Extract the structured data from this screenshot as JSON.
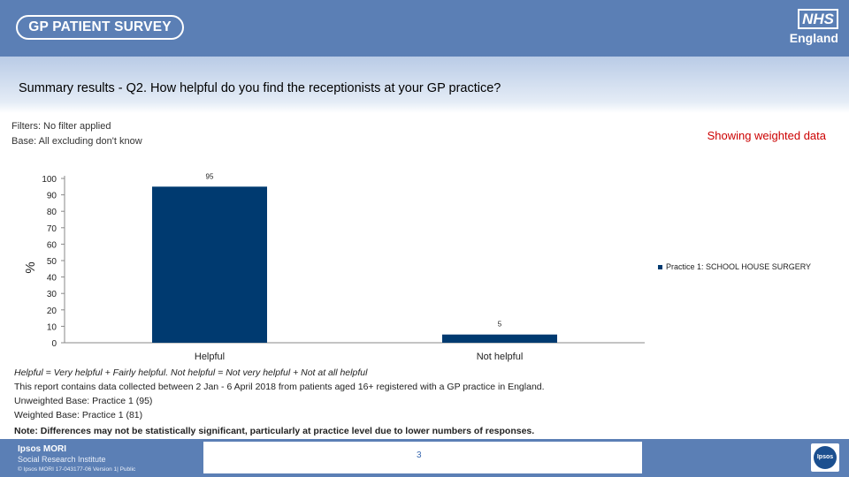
{
  "header": {
    "survey_logo": "GP PATIENT SURVEY",
    "nhs_logo": "NHS",
    "nhs_england": "England"
  },
  "title": "Summary results - Q2.  How helpful do you find the receptionists at your GP practice?",
  "filters": "Filters: No filter applied",
  "base": "Base: All excluding don't know",
  "weighted_label": "Showing weighted data",
  "chart_data": {
    "type": "bar",
    "categories": [
      "Helpful",
      "Not helpful"
    ],
    "series": [
      {
        "name": "Practice 1: SCHOOL HOUSE SURGERY",
        "values": [
          95,
          5
        ]
      }
    ],
    "data_labels": [
      "95",
      "5"
    ],
    "ylabel": "%",
    "ylim": [
      0,
      100
    ],
    "yticks": [
      0,
      10,
      20,
      30,
      40,
      50,
      60,
      70,
      80,
      90,
      100
    ],
    "legend_position": "right",
    "grid": false,
    "bar_color": "#003a70"
  },
  "footnotes": {
    "definition": "Helpful = Very helpful + Fairly helpful. Not helpful = Not very helpful + Not at all helpful",
    "collection": "This report contains data collected between 2 Jan - 6 April 2018 from patients aged 16+ registered with a GP practice in England.",
    "unweighted_base": "Unweighted Base: Practice 1 (95)",
    "weighted_base": "Weighted Base: Practice 1 (81)",
    "note": "Note: Differences may not be statistically significant, particularly at practice level due to lower numbers of responses."
  },
  "footer": {
    "ipsos_name": "Ipsos MORI",
    "ipsos_sri": "Social Research Institute",
    "copyright": "© Ipsos MORI        17-043177-06 Version 1| Public",
    "page_number": "3",
    "ipsos_logo": "Ipsos"
  }
}
